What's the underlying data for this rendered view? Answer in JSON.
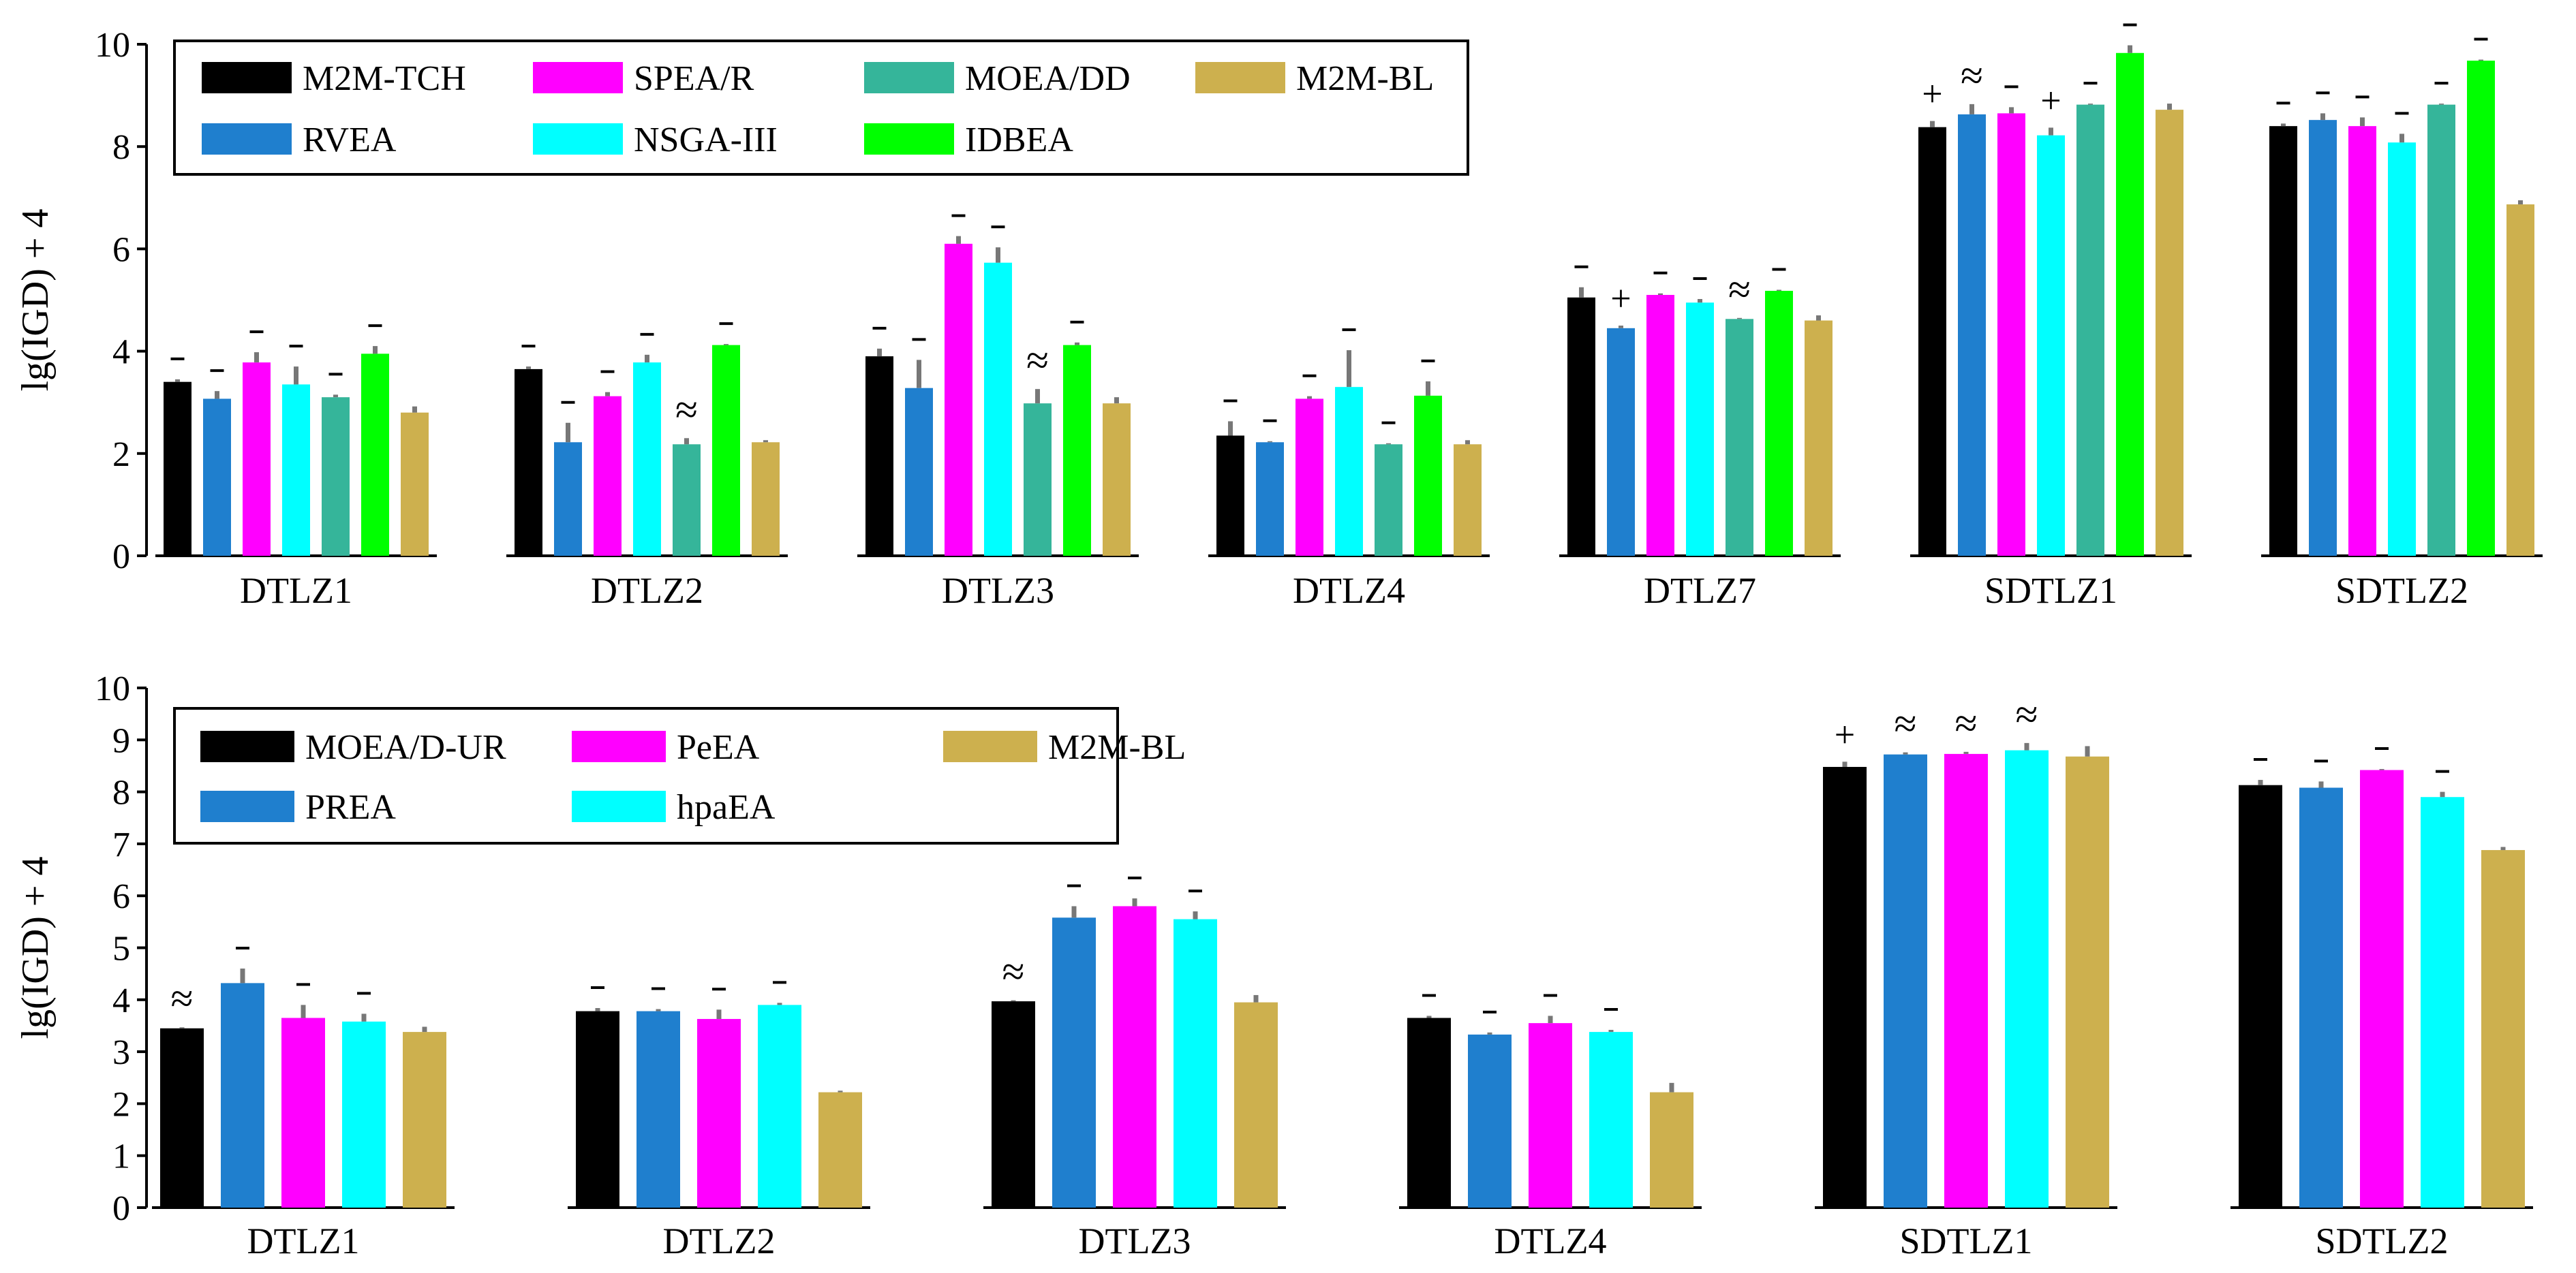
{
  "chart_data": [
    {
      "type": "bar",
      "ylabel": "lg(IGD) + 4",
      "ylim": [
        0,
        10
      ],
      "yticks": [
        0,
        2,
        4,
        6,
        8,
        10
      ],
      "legend": {
        "position": "top-left",
        "columns": 4,
        "entries": [
          "M2M-TCH",
          "SPEA/R",
          "MOEA/DD",
          "M2M-BL",
          "RVEA",
          "NSGA-III",
          "IDBEA"
        ]
      },
      "categories": [
        "DTLZ1",
        "DTLZ2",
        "DTLZ3",
        "DTLZ4",
        "DTLZ7",
        "SDTLZ1",
        "SDTLZ2"
      ],
      "series": [
        {
          "name": "M2M-TCH",
          "color": "#000000",
          "values": [
            3.4,
            3.65,
            3.9,
            2.35,
            5.05,
            8.38,
            8.4
          ],
          "errors": [
            0.05,
            0.05,
            0.15,
            0.28,
            0.2,
            0.12,
            0.05
          ],
          "marks": [
            "-",
            "-",
            "-",
            "-",
            "-",
            "+",
            "-"
          ]
        },
        {
          "name": "RVEA",
          "color": "#1f7fce",
          "values": [
            3.07,
            2.22,
            3.28,
            2.22,
            4.45,
            8.63,
            8.52
          ],
          "errors": [
            0.15,
            0.38,
            0.55,
            0.02,
            0.05,
            0.2,
            0.13
          ],
          "marks": [
            "-",
            "-",
            "-",
            "-",
            "+",
            "≈",
            "-"
          ]
        },
        {
          "name": "SPEA/R",
          "color": "#ff00ff",
          "values": [
            3.78,
            3.12,
            6.1,
            3.07,
            5.1,
            8.65,
            8.4
          ],
          "errors": [
            0.2,
            0.08,
            0.15,
            0.05,
            0.03,
            0.12,
            0.17
          ],
          "marks": [
            "-",
            "-",
            "-",
            "-",
            "-",
            "-",
            "-"
          ]
        },
        {
          "name": "NSGA-III",
          "color": "#00ffff",
          "values": [
            3.35,
            3.78,
            5.73,
            3.3,
            4.95,
            8.22,
            8.08
          ],
          "errors": [
            0.35,
            0.15,
            0.3,
            0.72,
            0.07,
            0.15,
            0.17
          ],
          "marks": [
            "-",
            "-",
            "-",
            "-",
            "-",
            "+",
            "-"
          ]
        },
        {
          "name": "MOEA/DD",
          "color": "#35b59a",
          "values": [
            3.1,
            2.18,
            2.98,
            2.18,
            4.63,
            8.82,
            8.82
          ],
          "errors": [
            0.05,
            0.12,
            0.28,
            0.02,
            0.02,
            0.02,
            0.02
          ],
          "marks": [
            "-",
            "≈",
            "≈",
            "-",
            "≈",
            "-",
            "-"
          ]
        },
        {
          "name": "IDBEA",
          "color": "#00ff00",
          "values": [
            3.95,
            4.12,
            4.12,
            3.13,
            5.18,
            9.83,
            9.68
          ],
          "errors": [
            0.15,
            0.02,
            0.05,
            0.28,
            0.02,
            0.15,
            0.02
          ],
          "marks": [
            "-",
            "-",
            "-",
            "-",
            "-",
            "-",
            "-"
          ]
        },
        {
          "name": "M2M-BL",
          "color": "#cdb04e",
          "values": [
            2.8,
            2.22,
            2.98,
            2.18,
            4.6,
            8.72,
            6.87
          ],
          "errors": [
            0.12,
            0.04,
            0.12,
            0.08,
            0.1,
            0.12,
            0.08
          ],
          "marks": [
            "",
            "",
            "",
            "",
            "",
            "",
            ""
          ]
        }
      ]
    },
    {
      "type": "bar",
      "ylabel": "lg(IGD) + 4",
      "ylim": [
        0,
        10
      ],
      "yticks": [
        0,
        1,
        2,
        3,
        4,
        5,
        6,
        7,
        8,
        9,
        10
      ],
      "legend": {
        "position": "top-left",
        "columns": 3,
        "entries": [
          "MOEA/D-UR",
          "PeEA",
          "M2M-BL",
          "PREA",
          "hpaEA"
        ]
      },
      "categories": [
        "DTLZ1",
        "DTLZ2",
        "DTLZ3",
        "DTLZ4",
        "SDTLZ1",
        "SDTLZ2"
      ],
      "series": [
        {
          "name": "MOEA/D-UR",
          "color": "#000000",
          "values": [
            3.45,
            3.78,
            3.97,
            3.65,
            8.48,
            8.13
          ],
          "errors": [
            0.02,
            0.06,
            0.02,
            0.04,
            0.1,
            0.1
          ],
          "marks": [
            "≈",
            "-",
            "≈",
            "-",
            "+",
            "-"
          ]
        },
        {
          "name": "PREA",
          "color": "#1f7fce",
          "values": [
            4.32,
            3.78,
            5.58,
            3.33,
            8.72,
            8.08
          ],
          "errors": [
            0.28,
            0.04,
            0.22,
            0.04,
            0.04,
            0.12
          ],
          "marks": [
            "-",
            "-",
            "-",
            "-",
            "≈",
            "-"
          ]
        },
        {
          "name": "PeEA",
          "color": "#ff00ff",
          "values": [
            3.65,
            3.63,
            5.8,
            3.55,
            8.73,
            8.42
          ],
          "errors": [
            0.25,
            0.18,
            0.15,
            0.14,
            0.04,
            0.02
          ],
          "marks": [
            "-",
            "-",
            "-",
            "-",
            "≈",
            "-"
          ]
        },
        {
          "name": "hpaEA",
          "color": "#00ffff",
          "values": [
            3.58,
            3.9,
            5.55,
            3.38,
            8.8,
            7.9
          ],
          "errors": [
            0.15,
            0.04,
            0.15,
            0.04,
            0.14,
            0.1
          ],
          "marks": [
            "-",
            "-",
            "-",
            "-",
            "≈",
            "-"
          ]
        },
        {
          "name": "M2M-BL",
          "color": "#cdb04e",
          "values": [
            3.38,
            2.22,
            3.95,
            2.22,
            8.68,
            6.88
          ],
          "errors": [
            0.1,
            0.03,
            0.14,
            0.18,
            0.2,
            0.06
          ],
          "marks": [
            "",
            "",
            "",
            "",
            "",
            ""
          ]
        }
      ]
    }
  ]
}
